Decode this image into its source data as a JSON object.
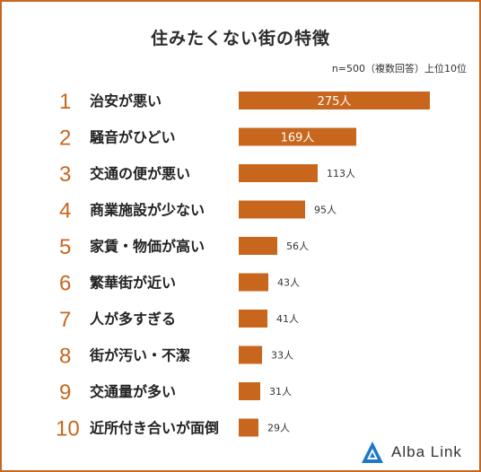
{
  "title": "住みたくない街の特徴",
  "note": "n=500（複数回答）上位10位",
  "brand": {
    "name": "Alba Link",
    "logo_icon": "triangle-logo-icon",
    "color": "#1e78c8"
  },
  "colors": {
    "bar": "#c8661e",
    "rank": "#c8661e",
    "frame": "#c8661e",
    "label": "#222222"
  },
  "chart_data": {
    "type": "bar",
    "orientation": "horizontal",
    "ranks": [
      "1",
      "2",
      "3",
      "4",
      "5",
      "6",
      "7",
      "8",
      "9",
      "10"
    ],
    "categories": [
      "治安が悪い",
      "騒音がひどい",
      "交通の便が悪い",
      "商業施設が少ない",
      "家賃・物価が高い",
      "繁華街が近い",
      "人が多すぎる",
      "街が汚い・不潔",
      "交通量が多い",
      "近所付き合いが面倒"
    ],
    "values": [
      275,
      169,
      113,
      95,
      56,
      43,
      41,
      33,
      31,
      29
    ],
    "value_labels": [
      "275人",
      "169人",
      "113人",
      "95人",
      "56人",
      "43人",
      "41人",
      "33人",
      "31人",
      "29人"
    ],
    "unit": "人",
    "n": 500
  }
}
